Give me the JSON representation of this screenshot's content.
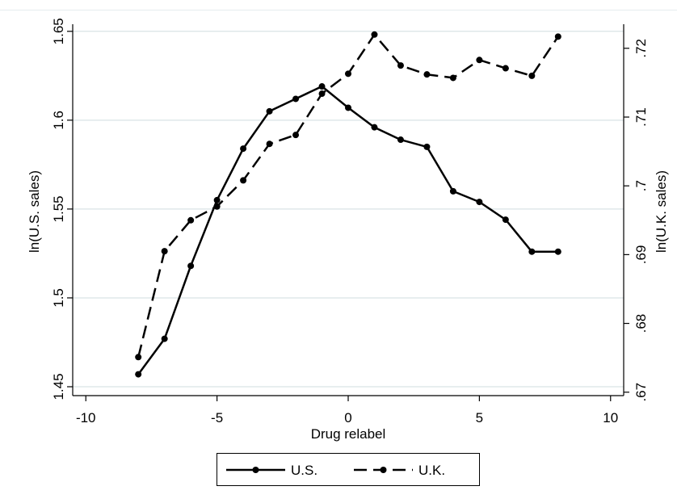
{
  "chart_data": {
    "type": "line",
    "xlabel": "Drug relabel",
    "ylabel_left": "ln(U.S. sales)",
    "ylabel_right": "ln(U.K. sales)",
    "xlim": [
      -10.5,
      10.5
    ],
    "ylim_left": [
      1.445,
      1.654
    ],
    "ylim_right": [
      0.6695,
      0.7235
    ],
    "x_ticks": [
      -10,
      -5,
      0,
      5,
      10
    ],
    "x_tick_labels": [
      "-10",
      "-5",
      "0",
      "5",
      "10"
    ],
    "y_left_ticks": [
      1.45,
      1.5,
      1.55,
      1.6,
      1.65
    ],
    "y_left_tick_labels": [
      "1.45",
      "1.5",
      "1.55",
      "1.6",
      "1.65"
    ],
    "y_right_ticks": [
      0.67,
      0.68,
      0.69,
      0.7,
      0.71,
      0.72
    ],
    "y_right_tick_labels": [
      ".67",
      ".68",
      ".69",
      ".7",
      ".71",
      ".72"
    ],
    "grid": true,
    "legend_position": "bottom",
    "series": [
      {
        "name": "U.S.",
        "axis": "left",
        "style": "solid",
        "color": "#000000",
        "x": [
          -8,
          -7,
          -6,
          -5,
          -4,
          -3,
          -2,
          -1,
          0,
          1,
          2,
          3,
          4,
          5,
          6,
          7,
          8
        ],
        "values": [
          1.457,
          1.477,
          1.518,
          1.555,
          1.584,
          1.605,
          1.612,
          1.619,
          1.607,
          1.596,
          1.589,
          1.585,
          1.56,
          1.554,
          1.544,
          1.526,
          1.526
        ]
      },
      {
        "name": "U.K.",
        "axis": "right",
        "style": "dashed",
        "color": "#000000",
        "x": [
          -8,
          -7,
          -6,
          -5,
          -4,
          -3,
          -2,
          -1,
          0,
          1,
          2,
          3,
          4,
          5,
          6,
          7,
          8
        ],
        "values": [
          0.6751,
          0.6905,
          0.695,
          0.697,
          0.7008,
          0.7061,
          0.7074,
          0.7134,
          0.7163,
          0.722,
          0.7175,
          0.7162,
          0.7157,
          0.7183,
          0.7171,
          0.716,
          0.7217
        ]
      }
    ]
  }
}
